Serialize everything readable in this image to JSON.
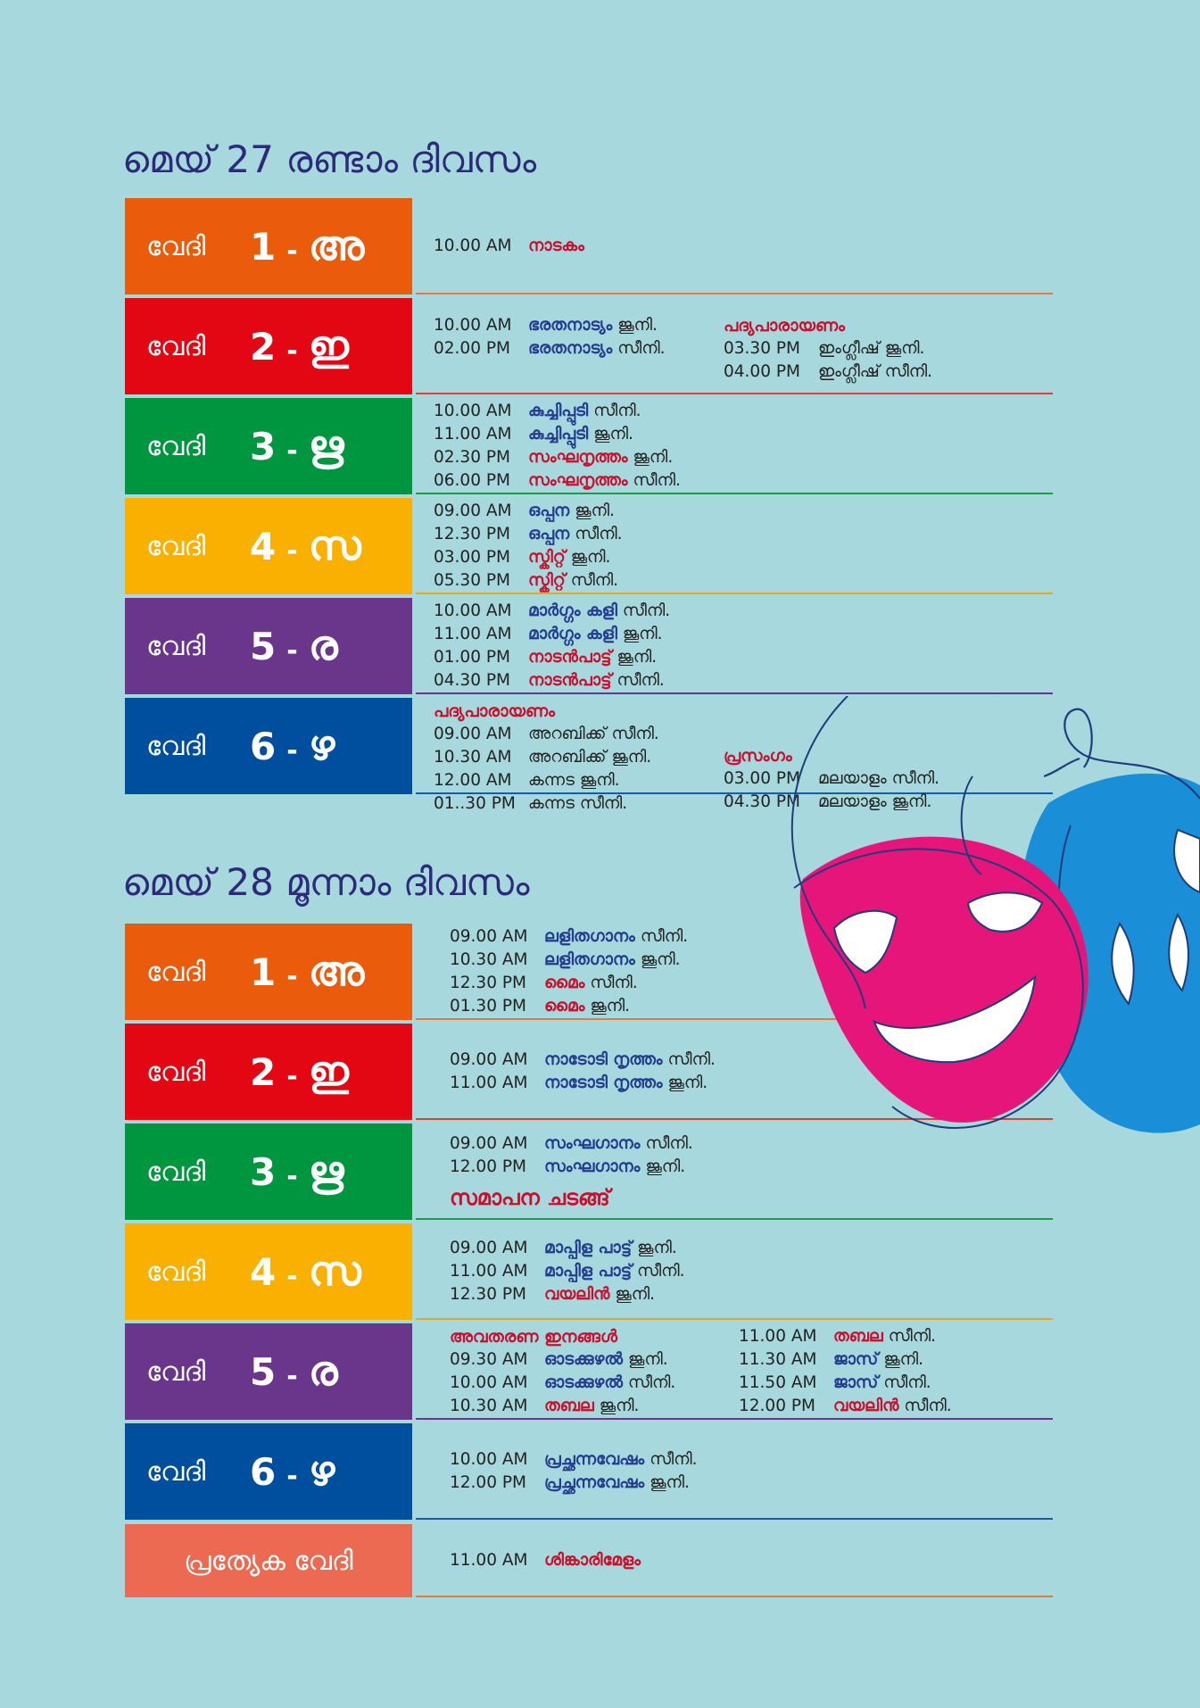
{
  "colors": {
    "background": "#a6d8de",
    "vedi_1": "#ea5b0c",
    "vedi_2": "#e30613",
    "vedi_3": "#009640",
    "vedi_4": "#f9b000",
    "vedi_5": "#6a368b",
    "vedi_6": "#004f9f",
    "special": "#ec6a52",
    "event_blue": "#233c8e",
    "event_red": "#c8102e"
  },
  "vedi_word": "വേദി",
  "dash": "-",
  "day2": {
    "title": "മെയ് 27 രണ്ടാം ദിവസം",
    "stages": [
      {
        "num": "1",
        "letter": "അ",
        "color": "#ea5b0c",
        "line": "#e07b39",
        "cols": [
          [
            {
              "time": "10.00 AM",
              "event": "നാടകം",
              "c": "red",
              "level": ""
            }
          ]
        ]
      },
      {
        "num": "2",
        "letter": "ഇ",
        "color": "#e30613",
        "line": "#e04030",
        "cols": [
          [
            {
              "time": "10.00 AM",
              "event": "ഭരതനാട്യം",
              "c": "blue",
              "level": "ജൂനി."
            },
            {
              "time": "02.00 PM",
              "event": "ഭരതനാട്യം",
              "c": "blue",
              "level": "സീനി."
            }
          ],
          [
            {
              "heading": "പദ്യപാരായണം"
            },
            {
              "time": "03.30 PM",
              "event": "ഇംഗ്ലീഷ്",
              "c": "",
              "level": "ജൂനി."
            },
            {
              "time": "04.00 PM",
              "event": "ഇംഗ്ലീഷ്",
              "c": "",
              "level": "സീനി."
            }
          ]
        ]
      },
      {
        "num": "3",
        "letter": "ഋ",
        "color": "#009640",
        "line": "#1f9a4a",
        "cols": [
          [
            {
              "time": "10.00 AM",
              "event": "കുച്ചിപ്പുടി",
              "c": "blue",
              "level": "സീനി."
            },
            {
              "time": "11.00 AM",
              "event": "കുച്ചിപ്പുടി",
              "c": "blue",
              "level": "ജൂനി."
            },
            {
              "time": "02.30 PM",
              "event": "സംഘനൃത്തം",
              "c": "red",
              "level": "ജൂനി."
            },
            {
              "time": "06.00 PM",
              "event": "സംഘനൃത്തം",
              "c": "red",
              "level": "സീനി."
            }
          ]
        ]
      },
      {
        "num": "4",
        "letter": "സ",
        "color": "#f9b000",
        "line": "#e5a81a",
        "cols": [
          [
            {
              "time": "09.00 AM",
              "event": "ഒപ്പന",
              "c": "blue",
              "level": "ജൂനി."
            },
            {
              "time": "12.30 PM",
              "event": "ഒപ്പന",
              "c": "blue",
              "level": "സീനി."
            },
            {
              "time": "03.00 PM",
              "event": "സ്കിറ്റ്",
              "c": "red",
              "level": "ജൂനി."
            },
            {
              "time": "05.30 PM",
              "event": "സ്കിറ്റ്",
              "c": "red",
              "level": "സീനി."
            }
          ]
        ]
      },
      {
        "num": "5",
        "letter": "ര",
        "color": "#6a368b",
        "line": "#6a368b",
        "cols": [
          [
            {
              "time": "10.00 AM",
              "event": "മാർഗ്ഗം കളി",
              "c": "blue",
              "level": "സീനി."
            },
            {
              "time": "11.00 AM",
              "event": "മാർഗ്ഗം കളി",
              "c": "blue",
              "level": "ജൂനി."
            },
            {
              "time": "01.00 PM",
              "event": "നാടൻപാട്ട്",
              "c": "red",
              "level": "ജൂനി."
            },
            {
              "time": "04.30 PM",
              "event": "നാടൻപാട്ട്",
              "c": "red",
              "level": "സീനി."
            }
          ]
        ]
      },
      {
        "num": "6",
        "letter": "ഴ",
        "color": "#004f9f",
        "line": "#1a5aa8",
        "cols": [
          [
            {
              "heading": "പദ്യപാരായണം"
            },
            {
              "time": "09.00 AM",
              "event": "അറബിക്ക്",
              "c": "",
              "level": "സീനി."
            },
            {
              "time": "10.30 AM",
              "event": "അറബിക്ക്",
              "c": "",
              "level": "ജൂനി."
            },
            {
              "time": "12.00 AM",
              "event": "കന്നട",
              "c": "",
              "level": "ജൂനി."
            },
            {
              "time": "01..30 PM",
              "event": "കന്നട",
              "c": "",
              "level": "സീനി."
            }
          ],
          [
            {
              "heading": "പ്രസംഗം"
            },
            {
              "time": "03.00 PM",
              "event": "മലയാളം",
              "c": "",
              "level": "സീനി."
            },
            {
              "time": "04.30 PM",
              "event": "മലയാളം",
              "c": "",
              "level": "ജൂനി."
            }
          ]
        ]
      }
    ]
  },
  "day3": {
    "title": "മെയ് 28 മൂന്നാം ദിവസം",
    "stages": [
      {
        "num": "1",
        "letter": "അ",
        "color": "#ea5b0c",
        "line": "#e07b39",
        "cols": [
          [
            {
              "time": "09.00 AM",
              "event": "ലളിതഗാനം",
              "c": "blue",
              "level": "സീനി."
            },
            {
              "time": "10.30 AM",
              "event": "ലളിതഗാനം",
              "c": "blue",
              "level": "ജൂനി."
            },
            {
              "time": "12.30 PM",
              "event": "മൈം",
              "c": "red",
              "level": "സീനി."
            },
            {
              "time": "01.30 PM",
              "event": "മൈം",
              "c": "red",
              "level": "ജൂനി."
            }
          ]
        ]
      },
      {
        "num": "2",
        "letter": "ഇ",
        "color": "#e30613",
        "line": "#e04030",
        "cols": [
          [
            {
              "time": "09.00 AM",
              "event": "നാടോടി നൃത്തം",
              "c": "blue",
              "level": "സീനി."
            },
            {
              "time": "11.00 AM",
              "event": "നാടോടി നൃത്തം",
              "c": "blue",
              "level": "ജൂനി."
            }
          ]
        ]
      },
      {
        "num": "3",
        "letter": "ഋ",
        "color": "#009640",
        "line": "#1f9a4a",
        "cols": [
          [
            {
              "time": "09.00 AM",
              "event": "സംഘഗാനം",
              "c": "blue",
              "level": "സീനി."
            },
            {
              "time": "12.00 PM",
              "event": "സംഘഗാനം",
              "c": "blue",
              "level": "ജൂനി."
            }
          ]
        ],
        "closing": "സമാപന ചടങ്ങ്"
      },
      {
        "num": "4",
        "letter": "സ",
        "color": "#f9b000",
        "line": "#e5a81a",
        "cols": [
          [
            {
              "time": "09.00 AM",
              "event": "മാപ്പിള പാട്ട്",
              "c": "blue",
              "level": "ജൂനി."
            },
            {
              "time": "11.00 AM",
              "event": "മാപ്പിള പാട്ട്",
              "c": "blue",
              "level": "സീനി."
            },
            {
              "time": "12.30 PM",
              "event": "വയലിൻ",
              "c": "red",
              "level": "ജൂനി."
            }
          ]
        ]
      },
      {
        "num": "5",
        "letter": "ര",
        "color": "#6a368b",
        "line": "#6a368b",
        "cols": [
          [
            {
              "heading": "അവതരണ ഇനങ്ങൾ"
            },
            {
              "time": "09.30 AM",
              "event": "ഓടക്കുഴൽ",
              "c": "blue",
              "level": "ജൂനി."
            },
            {
              "time": "10.00 AM",
              "event": "ഓടക്കുഴൽ",
              "c": "blue",
              "level": "സീനി."
            },
            {
              "time": "10.30 AM",
              "event": "തബല",
              "c": "red",
              "level": "ജൂനി."
            }
          ],
          [
            {
              "time": "11.00 AM",
              "event": "തബല",
              "c": "red",
              "level": "സീനി."
            },
            {
              "time": "11.30 AM",
              "event": "ജാസ്",
              "c": "blue",
              "level": "ജൂനി."
            },
            {
              "time": "11.50 AM",
              "event": "ജാസ്",
              "c": "blue",
              "level": "സീനി."
            },
            {
              "time": "12.00 PM",
              "event": "വയലിൻ",
              "c": "red",
              "level": "സീനി."
            }
          ]
        ]
      },
      {
        "num": "6",
        "letter": "ഴ",
        "color": "#004f9f",
        "line": "#1a5aa8",
        "cols": [
          [
            {
              "time": "10.00 AM",
              "event": "പ്രച്ഛന്നവേഷം",
              "c": "blue",
              "level": "സീനി."
            },
            {
              "time": "12.00 PM",
              "event": "പ്രച്ഛന്നവേഷം",
              "c": "blue",
              "level": "ജൂനി."
            }
          ]
        ]
      },
      {
        "special": "പ്രത്യേക വേദി",
        "color": "#ec6a52",
        "line": "#e07b39",
        "cols": [
          [
            {
              "time": "11.00 AM",
              "event": "ശിങ്കാരിമേളം",
              "c": "red",
              "level": ""
            }
          ]
        ]
      }
    ]
  },
  "decoration": {
    "icon": "theatre-masks-icon"
  }
}
